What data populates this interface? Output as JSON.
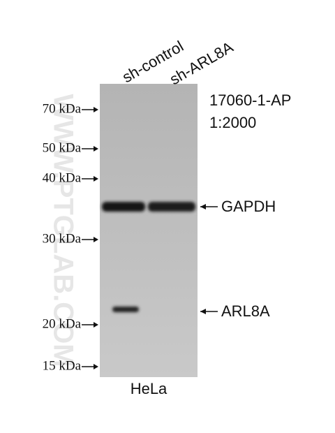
{
  "lanes": [
    "sh-control",
    "sh-ARL8A"
  ],
  "antibody": "17060-1-AP",
  "dilution": "1:2000",
  "markers": [
    "70 kDa",
    "50 kDa",
    "40 kDa",
    "30 kDa",
    "20 kDa",
    "15 kDa"
  ],
  "bands": [
    "GAPDH",
    "ARL8A"
  ],
  "sample": "HeLa",
  "watermark": "WWW.PTGLAB.COM"
}
